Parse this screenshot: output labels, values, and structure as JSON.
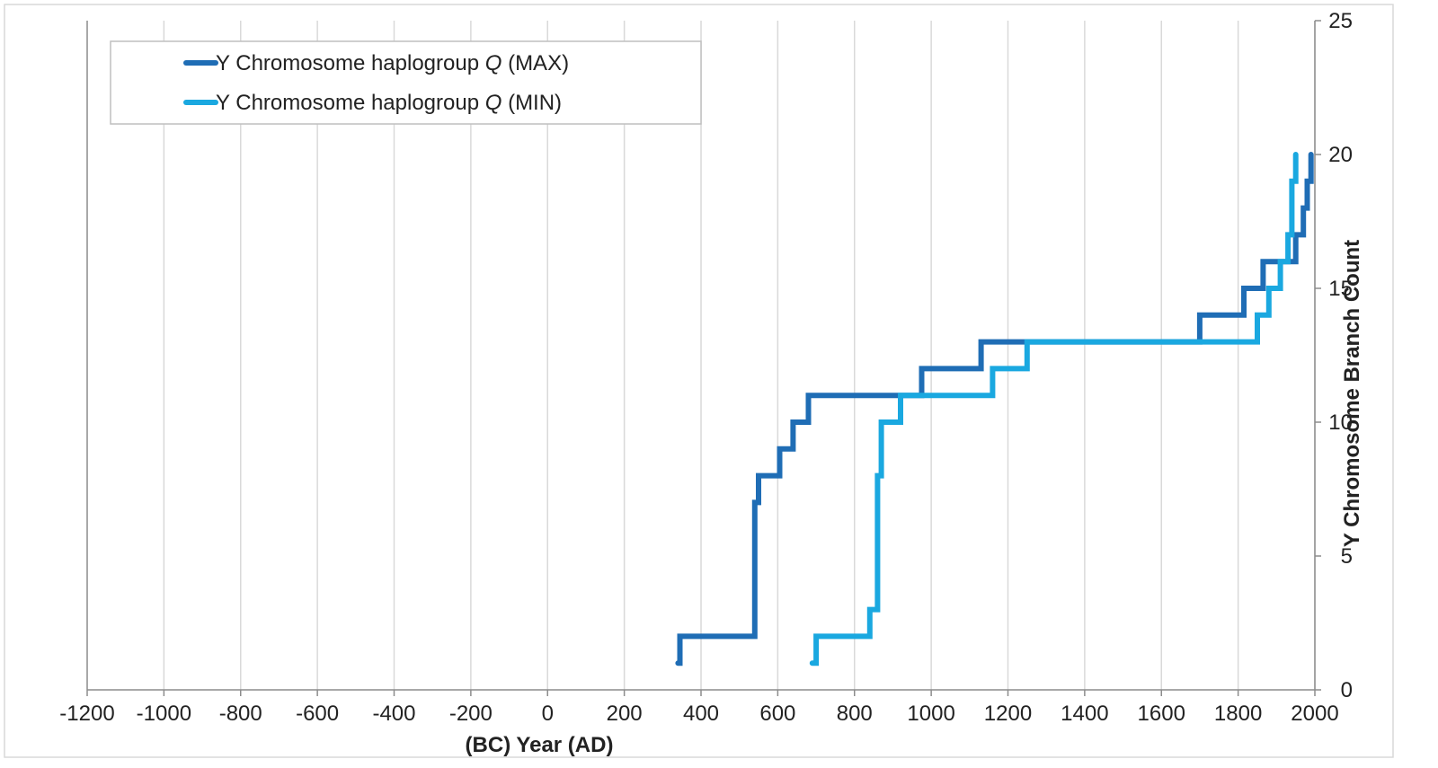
{
  "chart_data": {
    "type": "line",
    "step": true,
    "title": "",
    "xlabel": "(BC) Year (AD)",
    "ylabel": "Y Chromosome Branch Count",
    "xlim": [
      -1200,
      2000
    ],
    "ylim": [
      0,
      25
    ],
    "x_ticks": [
      -1200,
      -1000,
      -800,
      -600,
      -400,
      -200,
      0,
      200,
      400,
      600,
      800,
      1000,
      1200,
      1400,
      1600,
      1800,
      2000
    ],
    "y_ticks": [
      0,
      5,
      10,
      15,
      20,
      25
    ],
    "y_axis_side": "right",
    "grid": {
      "vertical": true,
      "horizontal": false
    },
    "legend": {
      "position": "top-left"
    },
    "series": [
      {
        "name": "Y Chromosome haplogroup Q (MAX)",
        "name_prefix": "Y Chromosome haplogroup ",
        "name_italic": "Q",
        "name_suffix": " (MAX)",
        "color": "#1f6db5",
        "points": [
          [
            340,
            1
          ],
          [
            345,
            2
          ],
          [
            540,
            7
          ],
          [
            550,
            8
          ],
          [
            605,
            9
          ],
          [
            640,
            10
          ],
          [
            680,
            11
          ],
          [
            975,
            12
          ],
          [
            1130,
            13
          ],
          [
            1700,
            14
          ],
          [
            1815,
            15
          ],
          [
            1865,
            16
          ],
          [
            1950,
            17
          ],
          [
            1970,
            18
          ],
          [
            1980,
            19
          ],
          [
            1990,
            20
          ]
        ]
      },
      {
        "name": "Y Chromosome haplogroup Q (MIN)",
        "name_prefix": "Y Chromosome haplogroup ",
        "name_italic": "Q",
        "name_suffix": " (MIN)",
        "color": "#1aa8e0",
        "points": [
          [
            690,
            1
          ],
          [
            700,
            2
          ],
          [
            840,
            3
          ],
          [
            860,
            8
          ],
          [
            870,
            10
          ],
          [
            920,
            11
          ],
          [
            1160,
            12
          ],
          [
            1250,
            13
          ],
          [
            1850,
            14
          ],
          [
            1880,
            15
          ],
          [
            1910,
            16
          ],
          [
            1930,
            17
          ],
          [
            1940,
            19
          ],
          [
            1950,
            20
          ]
        ]
      }
    ]
  }
}
